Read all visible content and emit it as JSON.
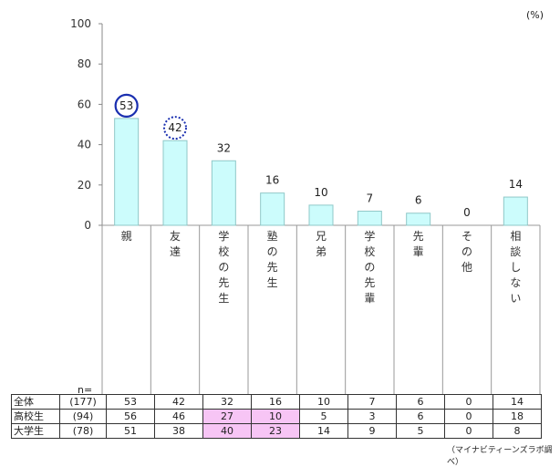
{
  "unit_label": "(%)",
  "n_label": "n=",
  "source": "（マイナビティーンズラボ調べ）",
  "colors": {
    "bar": "#ccfcfc",
    "bar_stroke": "#8fc8c8",
    "circle_solid": "#1a2fb0",
    "highlight": "#f7c5f5"
  },
  "chart_data": {
    "type": "bar",
    "categories": [
      "親",
      "友達",
      "学校の先生",
      "塾の先生",
      "兄弟",
      "学校の先輩",
      "先輩",
      "その他",
      "相談しない"
    ],
    "values": [
      53,
      42,
      32,
      16,
      10,
      7,
      6,
      0,
      14
    ],
    "ylim": [
      0,
      100
    ],
    "yticks": [
      0,
      20,
      40,
      60,
      80,
      100
    ],
    "circled": [
      {
        "index": 0,
        "style": "solid"
      },
      {
        "index": 1,
        "style": "dotted"
      }
    ]
  },
  "table": {
    "rows": [
      {
        "name": "全体",
        "n": "(177)",
        "values": [
          "53",
          "42",
          "32",
          "16",
          "10",
          "7",
          "6",
          "0",
          "14"
        ],
        "highlight": []
      },
      {
        "name": "高校生",
        "n": "(94)",
        "values": [
          "56",
          "46",
          "27",
          "10",
          "5",
          "3",
          "6",
          "0",
          "18"
        ],
        "highlight": [
          2,
          3
        ]
      },
      {
        "name": "大学生",
        "n": "(78)",
        "values": [
          "51",
          "38",
          "40",
          "23",
          "14",
          "9",
          "5",
          "0",
          "8"
        ],
        "highlight": [
          2,
          3
        ]
      }
    ]
  }
}
